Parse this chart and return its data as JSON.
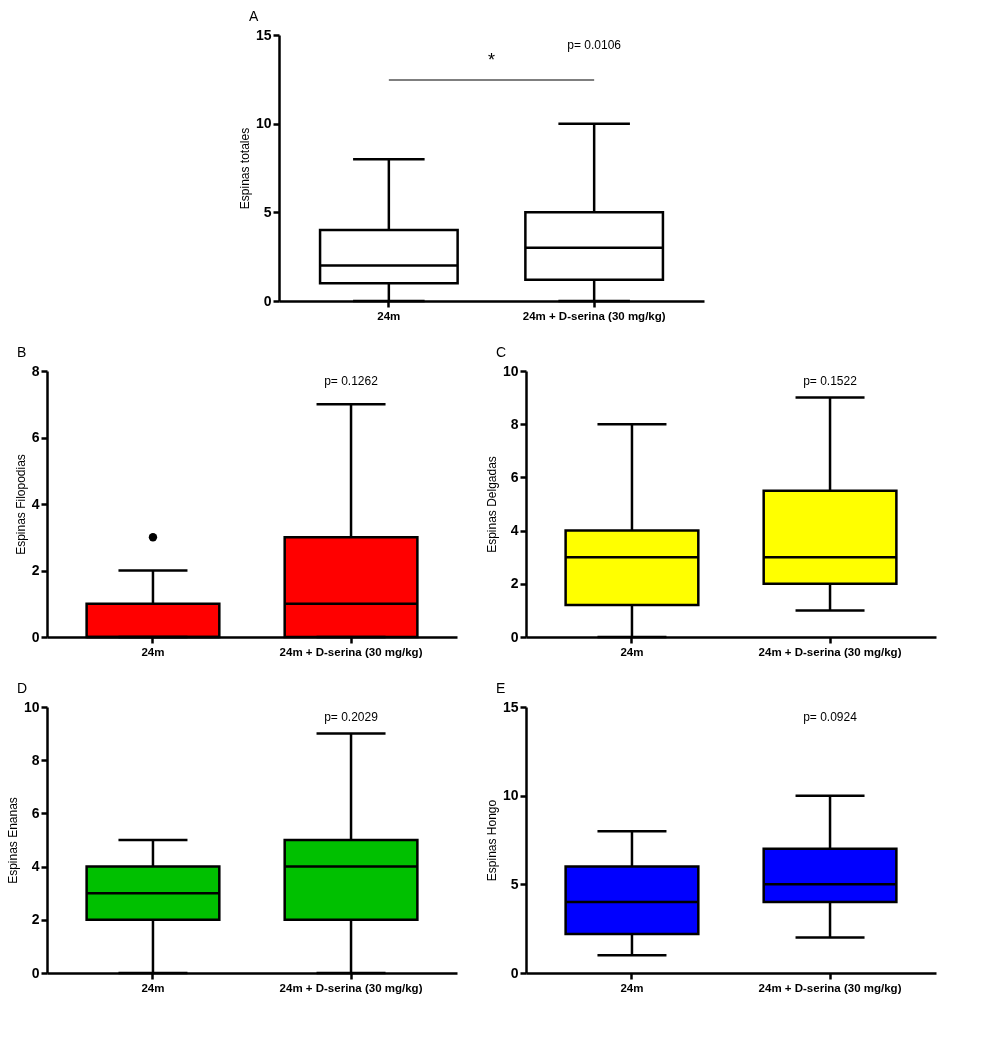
{
  "chart_data": [
    {
      "type": "box",
      "title": "A",
      "ylabel": "Espinas totales",
      "categories": [
        "24m",
        "24m + D-serina (30 mg/kg)"
      ],
      "colors": [
        "#ffffff",
        "#ffffff"
      ],
      "ylim": [
        0,
        15
      ],
      "yticks": [
        0,
        5,
        10,
        15
      ],
      "boxes": [
        {
          "low": 0,
          "q1": 1,
          "median": 2,
          "q3": 4,
          "high": 8
        },
        {
          "low": 0,
          "q1": 1.2,
          "median": 3,
          "q3": 5,
          "high": 10
        }
      ],
      "annotations": [
        "*",
        "p= 0.0106"
      ]
    },
    {
      "type": "box",
      "title": "B",
      "ylabel": "Espinas Filopodias",
      "categories": [
        "24m",
        "24m + D-serina (30 mg/kg)"
      ],
      "colors": [
        "#ff0000",
        "#ff0000"
      ],
      "ylim": [
        0,
        8
      ],
      "yticks": [
        0,
        2,
        4,
        6,
        8
      ],
      "boxes": [
        {
          "low": 0,
          "q1": 0,
          "median": 0,
          "q3": 1,
          "high": 2,
          "outliers": [
            3
          ]
        },
        {
          "low": 0,
          "q1": 0,
          "median": 1,
          "q3": 3,
          "high": 7
        }
      ],
      "annotations": [
        "p= 0.1262"
      ]
    },
    {
      "type": "box",
      "title": "C",
      "ylabel": "Espinas Delgadas",
      "categories": [
        "24m",
        "24m + D-serina (30 mg/kg)"
      ],
      "colors": [
        "#ffff00",
        "#ffff00"
      ],
      "ylim": [
        0,
        10
      ],
      "yticks": [
        0,
        2,
        4,
        6,
        8,
        10
      ],
      "boxes": [
        {
          "low": 0,
          "q1": 1.2,
          "median": 3,
          "q3": 4,
          "high": 8
        },
        {
          "low": 1,
          "q1": 2,
          "median": 3,
          "q3": 5.5,
          "high": 9
        }
      ],
      "annotations": [
        "p= 0.1522"
      ]
    },
    {
      "type": "box",
      "title": "D",
      "ylabel": "Espinas Enanas",
      "categories": [
        "24m",
        "24m + D-serina (30 mg/kg)"
      ],
      "colors": [
        "#00c000",
        "#00c000"
      ],
      "ylim": [
        0,
        10
      ],
      "yticks": [
        0,
        2,
        4,
        6,
        8,
        10
      ],
      "boxes": [
        {
          "low": 0,
          "q1": 2,
          "median": 3,
          "q3": 4,
          "high": 5
        },
        {
          "low": 0,
          "q1": 2,
          "median": 4,
          "q3": 5,
          "high": 9
        }
      ],
      "annotations": [
        "p= 0.2029"
      ]
    },
    {
      "type": "box",
      "title": "E",
      "ylabel": "Espinas Hongo",
      "categories": [
        "24m",
        "24m + D-serina (30 mg/kg)"
      ],
      "colors": [
        "#0000ff",
        "#0000ff"
      ],
      "ylim": [
        0,
        15
      ],
      "yticks": [
        0,
        5,
        10,
        15
      ],
      "boxes": [
        {
          "low": 1,
          "q1": 2.2,
          "median": 4,
          "q3": 6,
          "high": 8
        },
        {
          "low": 2,
          "q1": 4,
          "median": 5,
          "q3": 7,
          "high": 10
        }
      ],
      "annotations": [
        "p= 0.0924"
      ]
    }
  ]
}
